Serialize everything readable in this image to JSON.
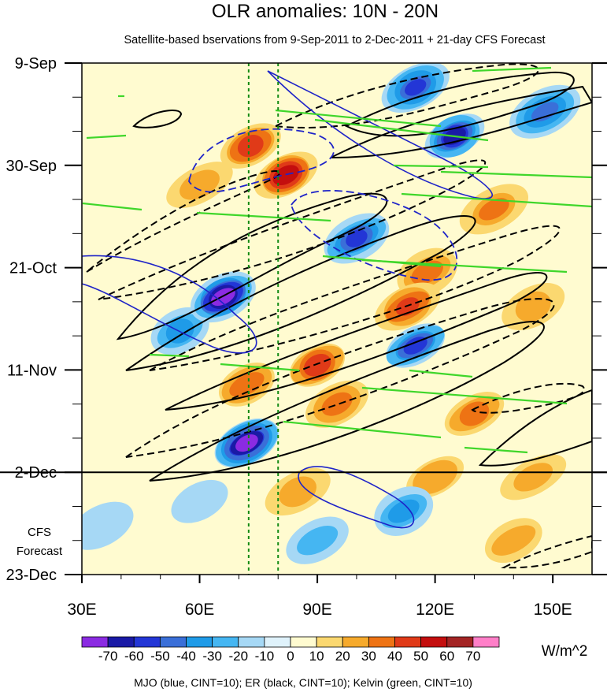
{
  "chart_data": {
    "type": "heatmap",
    "title": "OLR anomalies: 10N - 20N",
    "subtitle": "Satellite-based bservations from 9-Sep-2011 to 2-Dec-2011 + 21-day CFS Forecast",
    "x_axis": {
      "range": [
        30,
        160
      ],
      "ticks": [
        30,
        60,
        90,
        120,
        150
      ],
      "tick_labels": [
        "30E",
        "60E",
        "90E",
        "120E",
        "150E"
      ]
    },
    "y_axis": {
      "range_days": [
        0,
        105
      ],
      "ticks": [
        0,
        21,
        42,
        63,
        84,
        105
      ],
      "tick_labels": [
        "9-Sep",
        "30-Sep",
        "21-Oct",
        "11-Nov",
        "2-Dec",
        "23-Dec"
      ],
      "reversed": true
    },
    "forecast_start_day": 84,
    "forecast_label": [
      "CFS",
      "Forecast"
    ],
    "reference_lines_lon": [
      72.5,
      80
    ],
    "colorbar": {
      "levels": [
        "-70",
        "-60",
        "-50",
        "-40",
        "-30",
        "-20",
        "-10",
        "0",
        "10",
        "20",
        "30",
        "40",
        "50",
        "60",
        "70"
      ],
      "colors": [
        "#8b2be2",
        "#1a1aa6",
        "#2336d6",
        "#3a6fd8",
        "#1f9be8",
        "#45b6f2",
        "#a6d8f5",
        "#dff2fb",
        "#fffbd0",
        "#fbd870",
        "#f6aa2c",
        "#ee7314",
        "#e03a18",
        "#c40e0e",
        "#a32424",
        "#ff7fc8"
      ],
      "units": "W/m^2"
    },
    "legend_text": "MJO (blue, CINT=10); ER (black, CINT=10); Kelvin (green, CINT=10)",
    "anomaly_features": [
      {
        "lon": 66,
        "day": 48,
        "value": -70
      },
      {
        "lon": 72,
        "day": 78,
        "value": -70
      },
      {
        "lon": 115,
        "day": 5,
        "value": -50
      },
      {
        "lon": 125,
        "day": 15,
        "value": -60
      },
      {
        "lon": 100,
        "day": 36,
        "value": -50
      },
      {
        "lon": 115,
        "day": 58,
        "value": -50
      },
      {
        "lon": 148,
        "day": 10,
        "value": -40
      },
      {
        "lon": 112,
        "day": 92,
        "value": -30
      },
      {
        "lon": 55,
        "day": 55,
        "value": -30
      },
      {
        "lon": 82,
        "day": 23,
        "value": 50
      },
      {
        "lon": 73,
        "day": 17,
        "value": 40
      },
      {
        "lon": 90,
        "day": 62,
        "value": 40
      },
      {
        "lon": 113,
        "day": 50,
        "value": 40
      },
      {
        "lon": 118,
        "day": 43,
        "value": 30
      },
      {
        "lon": 135,
        "day": 30,
        "value": 30
      },
      {
        "lon": 72,
        "day": 66,
        "value": 30
      },
      {
        "lon": 95,
        "day": 70,
        "value": 30
      },
      {
        "lon": 130,
        "day": 72,
        "value": 30
      },
      {
        "lon": 145,
        "day": 50,
        "value": 20
      },
      {
        "lon": 85,
        "day": 88,
        "value": 20
      },
      {
        "lon": 145,
        "day": 85,
        "value": 20
      },
      {
        "lon": 60,
        "day": 25,
        "value": 20
      },
      {
        "lon": 120,
        "day": 85,
        "value": 20
      },
      {
        "lon": 140,
        "day": 98,
        "value": 20
      },
      {
        "lon": 35,
        "day": 95,
        "value": -10
      },
      {
        "lon": 60,
        "day": 90,
        "value": -10
      },
      {
        "lon": 90,
        "day": 98,
        "value": -20
      }
    ]
  }
}
